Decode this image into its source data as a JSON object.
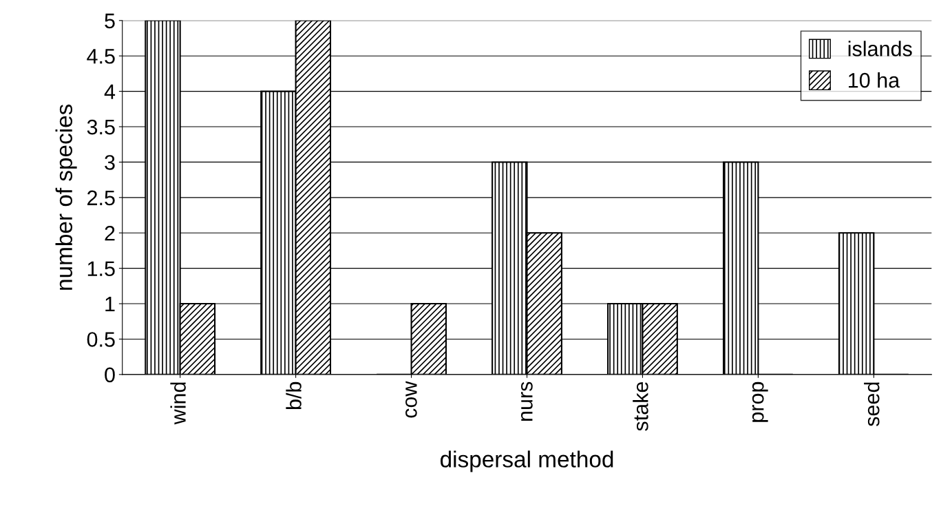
{
  "chart_data": {
    "type": "bar",
    "xlabel": "dispersal method",
    "ylabel": "number of species",
    "categories": [
      "wind",
      "b/b",
      "cow",
      "nurs",
      "stake",
      "prop",
      "seed"
    ],
    "series": [
      {
        "name": "islands",
        "color": "#000000",
        "values": [
          5,
          4,
          0,
          3,
          1,
          3,
          2
        ]
      },
      {
        "name": "10 ha",
        "color": "#000000",
        "values": [
          1,
          5,
          1,
          2,
          1,
          0,
          0
        ]
      }
    ],
    "ylim": [
      0,
      5
    ],
    "yticks": [
      0,
      0.5,
      1,
      1.5,
      2,
      2.5,
      3,
      3.5,
      4,
      4.5,
      5
    ],
    "grid": "y",
    "legend": "top right"
  }
}
